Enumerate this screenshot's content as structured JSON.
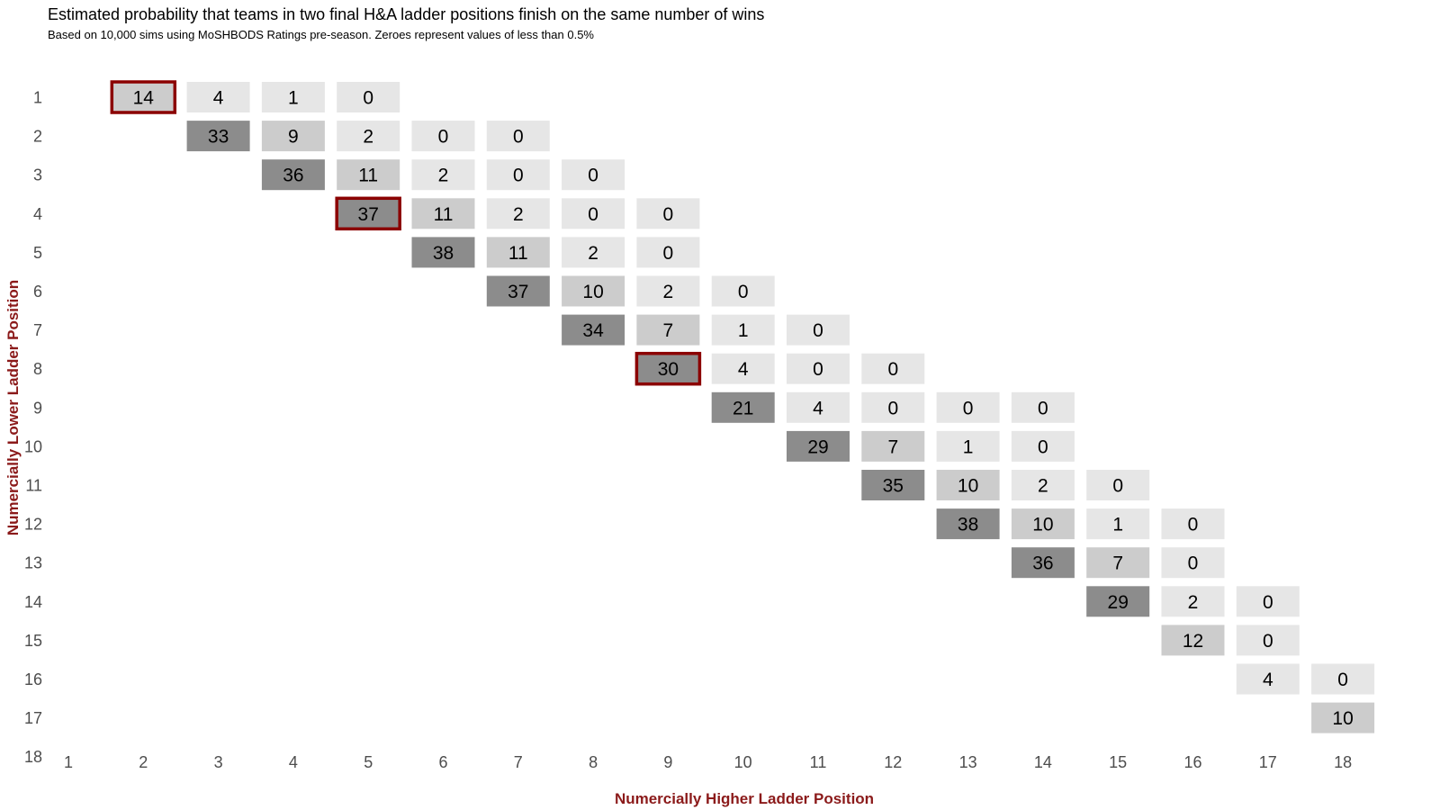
{
  "header": {
    "title": "Estimated probability that teams in two final H&A ladder positions finish on the same number of wins",
    "subtitle": "Based on 10,000 sims using MoSHBODS Ratings pre-season. Zeroes represent values of less than 0.5%"
  },
  "chart_data": {
    "type": "heatmap",
    "xlabel": "Numercially Higher Ladder Position",
    "ylabel": "Numercially Lower Ladder Position",
    "x_ticks": [
      "1",
      "2",
      "3",
      "4",
      "5",
      "6",
      "7",
      "8",
      "9",
      "10",
      "11",
      "12",
      "13",
      "14",
      "15",
      "16",
      "17",
      "18"
    ],
    "y_ticks": [
      "1",
      "2",
      "3",
      "4",
      "5",
      "6",
      "7",
      "8",
      "9",
      "10",
      "11",
      "12",
      "13",
      "14",
      "15",
      "16",
      "17",
      "18"
    ],
    "colors": {
      "low": "#e6e6e6",
      "mid": "#cccccc",
      "high": "#8c8c8c",
      "highlight_border": "#8b0000",
      "axis_title": "#8b1a1a"
    },
    "cells": [
      {
        "row": 1,
        "col": 2,
        "value": 14,
        "highlight": true
      },
      {
        "row": 1,
        "col": 3,
        "value": 4
      },
      {
        "row": 1,
        "col": 4,
        "value": 1
      },
      {
        "row": 1,
        "col": 5,
        "value": 0
      },
      {
        "row": 2,
        "col": 3,
        "value": 33
      },
      {
        "row": 2,
        "col": 4,
        "value": 9
      },
      {
        "row": 2,
        "col": 5,
        "value": 2
      },
      {
        "row": 2,
        "col": 6,
        "value": 0
      },
      {
        "row": 2,
        "col": 7,
        "value": 0
      },
      {
        "row": 3,
        "col": 4,
        "value": 36
      },
      {
        "row": 3,
        "col": 5,
        "value": 11
      },
      {
        "row": 3,
        "col": 6,
        "value": 2
      },
      {
        "row": 3,
        "col": 7,
        "value": 0
      },
      {
        "row": 3,
        "col": 8,
        "value": 0
      },
      {
        "row": 4,
        "col": 5,
        "value": 37,
        "highlight": true
      },
      {
        "row": 4,
        "col": 6,
        "value": 11
      },
      {
        "row": 4,
        "col": 7,
        "value": 2
      },
      {
        "row": 4,
        "col": 8,
        "value": 0
      },
      {
        "row": 4,
        "col": 9,
        "value": 0
      },
      {
        "row": 5,
        "col": 6,
        "value": 38
      },
      {
        "row": 5,
        "col": 7,
        "value": 11
      },
      {
        "row": 5,
        "col": 8,
        "value": 2
      },
      {
        "row": 5,
        "col": 9,
        "value": 0
      },
      {
        "row": 6,
        "col": 7,
        "value": 37
      },
      {
        "row": 6,
        "col": 8,
        "value": 10
      },
      {
        "row": 6,
        "col": 9,
        "value": 2
      },
      {
        "row": 6,
        "col": 10,
        "value": 0
      },
      {
        "row": 7,
        "col": 8,
        "value": 34
      },
      {
        "row": 7,
        "col": 9,
        "value": 7
      },
      {
        "row": 7,
        "col": 10,
        "value": 1
      },
      {
        "row": 7,
        "col": 11,
        "value": 0
      },
      {
        "row": 8,
        "col": 9,
        "value": 30,
        "highlight": true
      },
      {
        "row": 8,
        "col": 10,
        "value": 4
      },
      {
        "row": 8,
        "col": 11,
        "value": 0
      },
      {
        "row": 8,
        "col": 12,
        "value": 0
      },
      {
        "row": 9,
        "col": 10,
        "value": 21
      },
      {
        "row": 9,
        "col": 11,
        "value": 4
      },
      {
        "row": 9,
        "col": 12,
        "value": 0
      },
      {
        "row": 9,
        "col": 13,
        "value": 0
      },
      {
        "row": 9,
        "col": 14,
        "value": 0
      },
      {
        "row": 10,
        "col": 11,
        "value": 29
      },
      {
        "row": 10,
        "col": 12,
        "value": 7
      },
      {
        "row": 10,
        "col": 13,
        "value": 1
      },
      {
        "row": 10,
        "col": 14,
        "value": 0
      },
      {
        "row": 11,
        "col": 12,
        "value": 35
      },
      {
        "row": 11,
        "col": 13,
        "value": 10
      },
      {
        "row": 11,
        "col": 14,
        "value": 2
      },
      {
        "row": 11,
        "col": 15,
        "value": 0
      },
      {
        "row": 12,
        "col": 13,
        "value": 38
      },
      {
        "row": 12,
        "col": 14,
        "value": 10
      },
      {
        "row": 12,
        "col": 15,
        "value": 1
      },
      {
        "row": 12,
        "col": 16,
        "value": 0
      },
      {
        "row": 13,
        "col": 14,
        "value": 36
      },
      {
        "row": 13,
        "col": 15,
        "value": 7
      },
      {
        "row": 13,
        "col": 16,
        "value": 0
      },
      {
        "row": 14,
        "col": 15,
        "value": 29
      },
      {
        "row": 14,
        "col": 16,
        "value": 2
      },
      {
        "row": 14,
        "col": 17,
        "value": 0
      },
      {
        "row": 15,
        "col": 16,
        "value": 12
      },
      {
        "row": 15,
        "col": 17,
        "value": 0
      },
      {
        "row": 16,
        "col": 17,
        "value": 4
      },
      {
        "row": 16,
        "col": 18,
        "value": 0
      },
      {
        "row": 17,
        "col": 18,
        "value": 10
      }
    ]
  }
}
